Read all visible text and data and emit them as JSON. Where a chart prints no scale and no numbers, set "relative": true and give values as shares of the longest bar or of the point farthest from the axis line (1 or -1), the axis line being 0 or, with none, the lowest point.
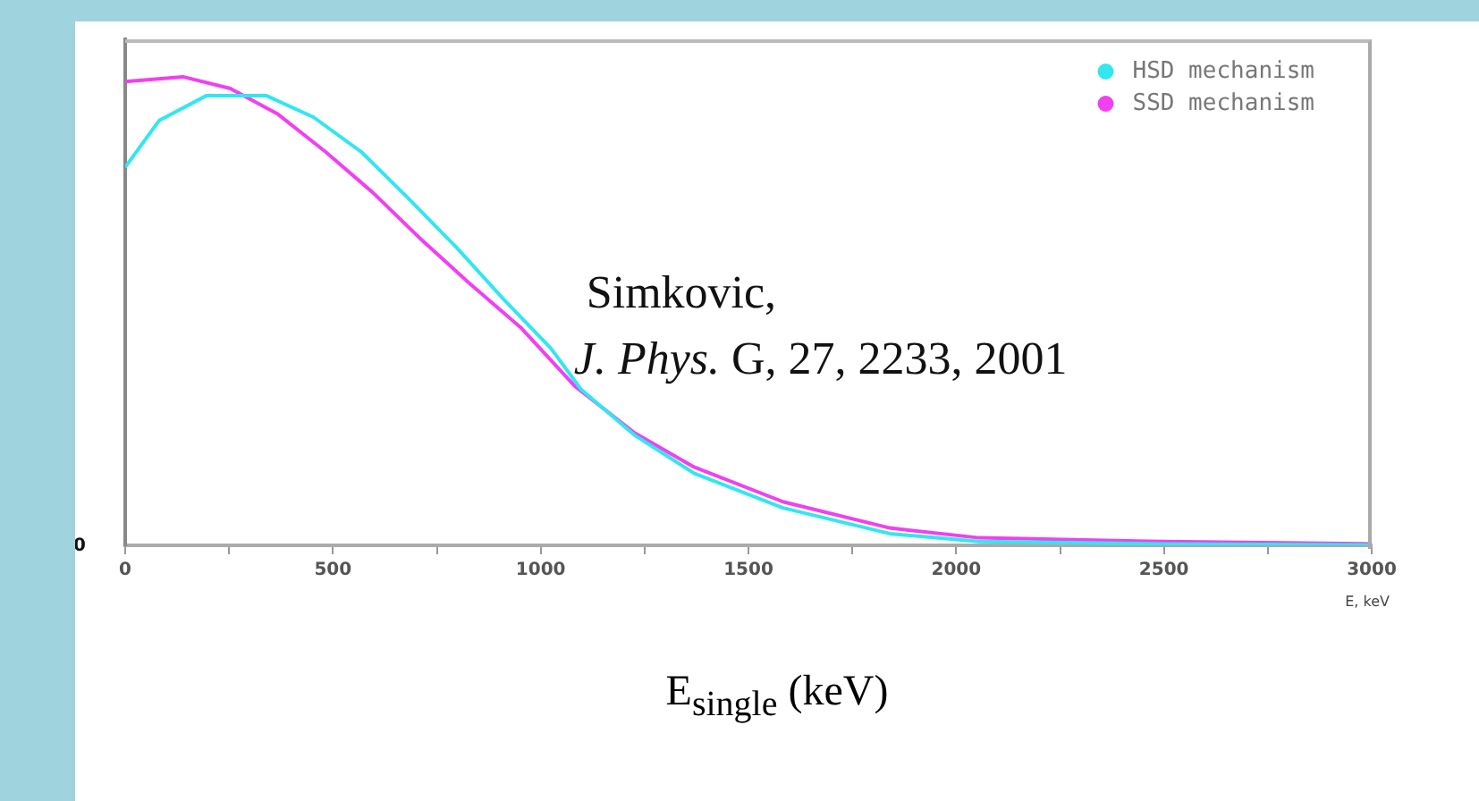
{
  "chart_data": {
    "type": "line",
    "relative": true,
    "xlabel": "E, keV",
    "xlim": [
      0,
      3000
    ],
    "xticks": [
      0,
      {
        "value": 250,
        "label": null
      },
      500,
      {
        "value": 750,
        "label": null
      },
      1000,
      {
        "value": 1250,
        "label": null
      },
      1500,
      {
        "value": 1750,
        "label": null
      },
      2000,
      {
        "value": 2250,
        "label": null
      },
      2500,
      {
        "value": 2750,
        "label": null
      },
      3000
    ],
    "legend": "top right",
    "marker": "none",
    "line_style": "solid",
    "grid": false,
    "series": [
      {
        "name": "HSD mechanism",
        "color": "#33e6f0",
        "x": [
          0,
          82,
          196,
          339,
          453,
          568,
          682,
          797,
          911,
          1025,
          1097,
          1226,
          1369,
          1583,
          1840,
          2055,
          2500,
          3000
        ],
        "values": [
          0.807,
          0.907,
          0.96,
          0.96,
          0.914,
          0.84,
          0.74,
          0.636,
          0.525,
          0.42,
          0.333,
          0.235,
          0.154,
          0.08,
          0.025,
          0.008,
          0.003,
          0.001
        ]
      },
      {
        "name": "SSD mechanism",
        "color": "#f040f0",
        "x": [
          0,
          139,
          253,
          368,
          482,
          596,
          711,
          825,
          954,
          1082,
          1226,
          1369,
          1583,
          1840,
          2055,
          2500,
          3000
        ],
        "values": [
          0.99,
          1,
          0.975,
          0.92,
          0.84,
          0.753,
          0.654,
          0.562,
          0.463,
          0.34,
          0.24,
          0.167,
          0.093,
          0.037,
          0.016,
          0.008,
          0.003
        ]
      }
    ],
    "annotations": [
      "Simkovic,",
      "J. Phys. G, 27, 2233, 2001",
      "0",
      "E$_{single}$ (keV)"
    ]
  }
}
